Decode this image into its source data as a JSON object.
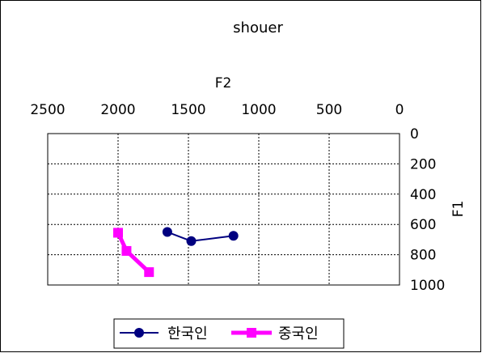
{
  "chart_data": {
    "type": "line",
    "title": "shouer",
    "xlabel": "F2",
    "ylabel": "F1",
    "x_axis_position": "top",
    "y_axis_position": "right",
    "x_reversed": true,
    "y_reversed": true,
    "xlim": [
      0,
      2500
    ],
    "ylim": [
      0,
      1000
    ],
    "x_ticks": [
      2500,
      2000,
      1500,
      1000,
      500,
      0
    ],
    "y_ticks": [
      0,
      200,
      400,
      600,
      800,
      1000
    ],
    "x_tick_labels": [
      "2500",
      "2000",
      "1500",
      "1000",
      "500",
      "0"
    ],
    "y_tick_labels": [
      "0",
      "200",
      "400",
      "600",
      "800",
      "1000"
    ],
    "grid": true,
    "legend_position": "bottom",
    "series": [
      {
        "name": "한국인",
        "color": "#000080",
        "marker": "circle",
        "points": [
          {
            "x": 1650,
            "y": 650
          },
          {
            "x": 1480,
            "y": 710
          },
          {
            "x": 1180,
            "y": 675
          }
        ]
      },
      {
        "name": "중국인",
        "color": "#ff00ff",
        "marker": "square",
        "points": [
          {
            "x": 2000,
            "y": 655
          },
          {
            "x": 1940,
            "y": 775
          },
          {
            "x": 1780,
            "y": 915
          }
        ]
      }
    ]
  }
}
